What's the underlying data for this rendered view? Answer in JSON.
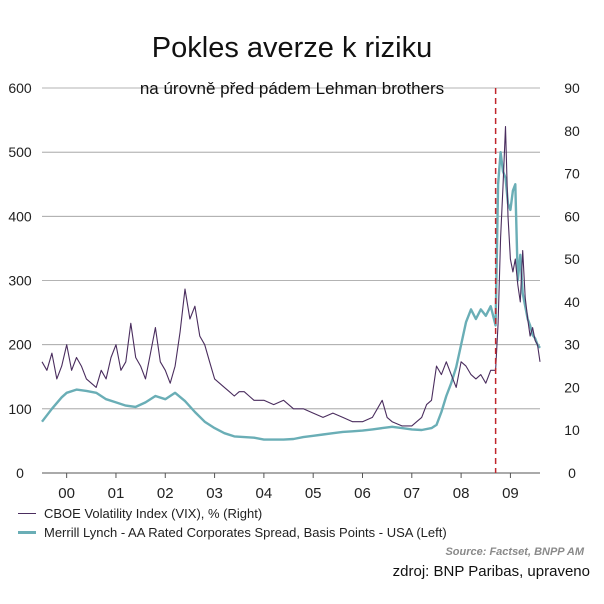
{
  "title": "Pokles averze k riziku",
  "subtitle": "na úrovně před pádem Lehman brothers",
  "source": "Source: Factset, BNPP AM",
  "credit": "zdroj: BNP Paribas, upraveno",
  "colors": {
    "vix": "#4a2d5e",
    "spread": "#6aaeb6",
    "marker": "#c0262d",
    "grid": "#9a9a9a"
  },
  "chart_data": {
    "type": "line",
    "title": "Pokles averze k riziku",
    "subtitle": "na úrovně před pádem Lehman brothers",
    "x_tick_labels": [
      "00",
      "01",
      "02",
      "03",
      "04",
      "05",
      "06",
      "07",
      "08",
      "09"
    ],
    "x_tick_positions": [
      2000.0,
      2001.0,
      2002.0,
      2003.0,
      2004.0,
      2005.0,
      2006.0,
      2007.0,
      2008.0,
      2009.0
    ],
    "xlim": [
      1999.5,
      2009.6
    ],
    "y_left": {
      "ticks": [
        "0",
        "100",
        "200",
        "300",
        "400",
        "500",
        "600"
      ],
      "ylim": [
        0,
        600
      ]
    },
    "y_right": {
      "ticks": [
        "0",
        "10",
        "20",
        "30",
        "40",
        "50",
        "60",
        "70",
        "80",
        "90"
      ],
      "ylim": [
        0,
        90
      ]
    },
    "grid": true,
    "legend_position": "bottom",
    "marker_line": {
      "x": 2008.7,
      "style": "dashed"
    },
    "series": [
      {
        "name": "CBOE Volatility Index (VIX), % (Right)",
        "axis": "right",
        "x": [
          1999.5,
          1999.6,
          1999.7,
          1999.8,
          1999.9,
          2000.0,
          2000.1,
          2000.2,
          2000.3,
          2000.4,
          2000.5,
          2000.6,
          2000.7,
          2000.8,
          2000.9,
          2001.0,
          2001.1,
          2001.2,
          2001.3,
          2001.4,
          2001.5,
          2001.6,
          2001.7,
          2001.8,
          2001.9,
          2002.0,
          2002.1,
          2002.2,
          2002.3,
          2002.4,
          2002.5,
          2002.6,
          2002.7,
          2002.8,
          2002.9,
          2003.0,
          2003.1,
          2003.2,
          2003.3,
          2003.4,
          2003.5,
          2003.6,
          2003.7,
          2003.8,
          2003.9,
          2004.0,
          2004.2,
          2004.4,
          2004.6,
          2004.8,
          2005.0,
          2005.2,
          2005.4,
          2005.6,
          2005.8,
          2006.0,
          2006.2,
          2006.4,
          2006.5,
          2006.6,
          2006.8,
          2007.0,
          2007.1,
          2007.2,
          2007.3,
          2007.4,
          2007.5,
          2007.6,
          2007.7,
          2007.8,
          2007.9,
          2008.0,
          2008.1,
          2008.2,
          2008.3,
          2008.4,
          2008.5,
          2008.6,
          2008.7,
          2008.75,
          2008.8,
          2008.85,
          2008.9,
          2008.95,
          2009.0,
          2009.05,
          2009.1,
          2009.15,
          2009.2,
          2009.25,
          2009.3,
          2009.35,
          2009.4,
          2009.45,
          2009.5,
          2009.55,
          2009.6
        ],
        "values": [
          26,
          24,
          28,
          22,
          25,
          30,
          24,
          27,
          25,
          22,
          21,
          20,
          24,
          22,
          27,
          30,
          24,
          26,
          35,
          27,
          25,
          22,
          28,
          34,
          26,
          24,
          21,
          25,
          33,
          43,
          36,
          39,
          32,
          30,
          26,
          22,
          21,
          20,
          19,
          18,
          19,
          19,
          18,
          17,
          17,
          17,
          16,
          17,
          15,
          15,
          14,
          13,
          14,
          13,
          12,
          12,
          13,
          17,
          13,
          12,
          11,
          11,
          12,
          13,
          16,
          17,
          25,
          23,
          26,
          23,
          20,
          26,
          25,
          23,
          22,
          23,
          21,
          24,
          24,
          35,
          55,
          67,
          81,
          60,
          50,
          47,
          50,
          44,
          40,
          52,
          41,
          36,
          32,
          34,
          31,
          30,
          26
        ]
      },
      {
        "name": "Merrill Lynch - AA Rated Corporates Spread, Basis Points - USA (Left)",
        "axis": "left",
        "x": [
          1999.5,
          1999.7,
          1999.9,
          2000.0,
          2000.2,
          2000.4,
          2000.6,
          2000.8,
          2001.0,
          2001.2,
          2001.4,
          2001.6,
          2001.8,
          2002.0,
          2002.2,
          2002.4,
          2002.6,
          2002.8,
          2003.0,
          2003.2,
          2003.4,
          2003.6,
          2003.8,
          2004.0,
          2004.2,
          2004.4,
          2004.6,
          2004.8,
          2005.0,
          2005.2,
          2005.4,
          2005.6,
          2005.8,
          2006.0,
          2006.2,
          2006.4,
          2006.6,
          2006.8,
          2007.0,
          2007.2,
          2007.4,
          2007.5,
          2007.6,
          2007.7,
          2007.8,
          2007.9,
          2008.0,
          2008.1,
          2008.2,
          2008.3,
          2008.4,
          2008.5,
          2008.6,
          2008.7,
          2008.75,
          2008.8,
          2008.85,
          2008.9,
          2008.95,
          2009.0,
          2009.05,
          2009.1,
          2009.15,
          2009.2,
          2009.25,
          2009.3,
          2009.35,
          2009.4,
          2009.45,
          2009.5,
          2009.55,
          2009.6
        ],
        "values": [
          80,
          100,
          118,
          125,
          130,
          128,
          125,
          115,
          110,
          105,
          103,
          110,
          120,
          115,
          125,
          112,
          95,
          80,
          70,
          62,
          57,
          56,
          55,
          52,
          52,
          52,
          53,
          56,
          58,
          60,
          62,
          64,
          65,
          66,
          68,
          70,
          72,
          70,
          68,
          67,
          70,
          75,
          95,
          120,
          140,
          165,
          200,
          235,
          255,
          240,
          255,
          245,
          260,
          230,
          450,
          500,
          470,
          460,
          420,
          410,
          440,
          450,
          300,
          340,
          280,
          260,
          240,
          230,
          215,
          210,
          200,
          195
        ]
      }
    ]
  }
}
